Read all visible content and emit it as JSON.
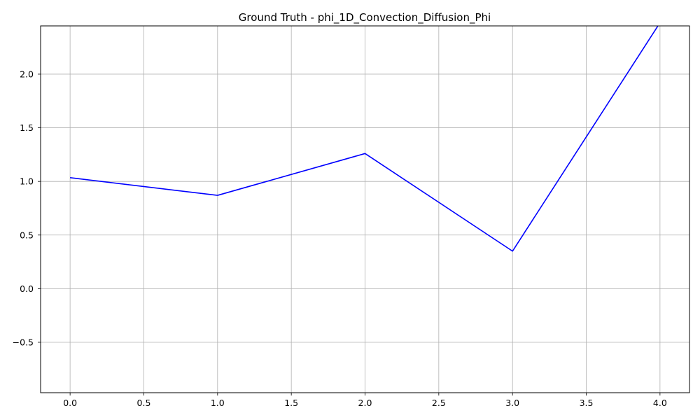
{
  "chart_data": {
    "type": "line",
    "title": "Ground Truth - phi_1D_Convection_Diffusion_Phi",
    "xlabel": "",
    "ylabel": "",
    "x": [
      0,
      1,
      2,
      3,
      4
    ],
    "series": [
      {
        "values": [
          1.035,
          0.87,
          1.26,
          0.35,
          2.48
        ],
        "color": "#0000ff"
      }
    ],
    "xlim": [
      -0.2,
      4.2
    ],
    "ylim": [
      -0.97,
      2.45
    ],
    "xticks": [
      0.0,
      0.5,
      1.0,
      1.5,
      2.0,
      2.5,
      3.0,
      3.5,
      4.0
    ],
    "xtick_labels": [
      "0.0",
      "0.5",
      "1.0",
      "1.5",
      "2.0",
      "2.5",
      "3.0",
      "3.5",
      "4.0"
    ],
    "yticks": [
      -0.5,
      0.0,
      0.5,
      1.0,
      1.5,
      2.0
    ],
    "ytick_labels": [
      "−0.5",
      "0.0",
      "0.5",
      "1.0",
      "1.5",
      "2.0"
    ],
    "grid": true,
    "grid_color": "#b0b0b0",
    "legend": "none"
  }
}
